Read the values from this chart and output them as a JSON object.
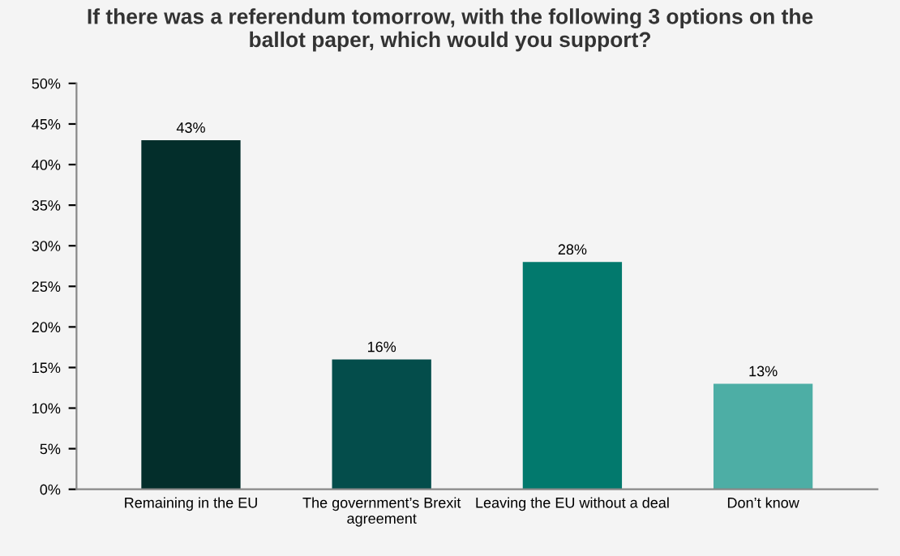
{
  "chart_data": {
    "type": "bar",
    "title": "If there was a referendum tomorrow, with the following 3 options on the\nballot paper, which would you support?",
    "categories": [
      "Remaining in the EU",
      "The government’s Brexit\nagreement",
      "Leaving the EU without a deal",
      "Don’t know"
    ],
    "values": [
      43,
      16,
      28,
      13
    ],
    "colors": [
      "#032e2b",
      "#044d4b",
      "#02796d",
      "#4daea5"
    ],
    "value_labels": [
      "43%",
      "16%",
      "28%",
      "13%"
    ],
    "ylim": [
      0,
      50
    ],
    "yticks": [
      {
        "value": 0,
        "label": "0%"
      },
      {
        "value": 5,
        "label": "5%"
      },
      {
        "value": 10,
        "label": "10%"
      },
      {
        "value": 15,
        "label": "15%"
      },
      {
        "value": 20,
        "label": "20%"
      },
      {
        "value": 25,
        "label": "25%"
      },
      {
        "value": 30,
        "label": "30%"
      },
      {
        "value": 35,
        "label": "35%"
      },
      {
        "value": 40,
        "label": "40%"
      },
      {
        "value": 45,
        "label": "45%"
      },
      {
        "value": 50,
        "label": "50%"
      }
    ],
    "grid": false
  }
}
